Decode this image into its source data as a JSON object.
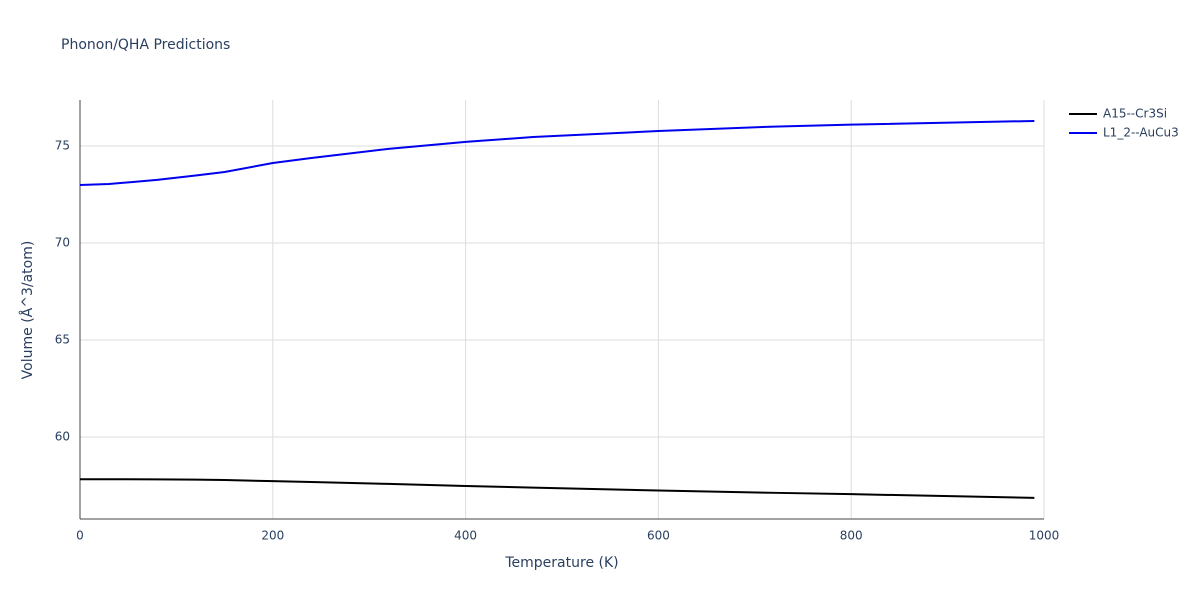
{
  "chart_data": {
    "type": "line",
    "title": "Phonon/QHA Predictions",
    "x_label": "Temperature (K)",
    "y_label": "Volume (Å^3/atom)",
    "x": [
      0,
      30,
      80,
      120,
      150,
      200,
      240,
      320,
      400,
      470,
      600,
      720,
      800,
      990
    ],
    "series": [
      {
        "name": "A15--Cr3Si",
        "color": "#000000",
        "values": [
          57.82,
          57.82,
          57.81,
          57.8,
          57.78,
          57.72,
          57.68,
          57.58,
          57.47,
          57.39,
          57.24,
          57.12,
          57.05,
          56.86
        ]
      },
      {
        "name": "L1_2--AuCu3",
        "color": "#0000ee",
        "values": [
          72.99,
          73.04,
          73.25,
          73.48,
          73.66,
          74.12,
          74.38,
          74.85,
          75.21,
          75.46,
          75.77,
          76.0,
          76.1,
          76.29
        ]
      }
    ],
    "xlim": [
      0,
      1000
    ],
    "xticks": [
      0,
      200,
      400,
      600,
      800,
      1000
    ],
    "ylim": [
      55.77,
      77.37
    ],
    "yticks": [
      60,
      65,
      70,
      75
    ],
    "grid": true,
    "legend": "right"
  }
}
